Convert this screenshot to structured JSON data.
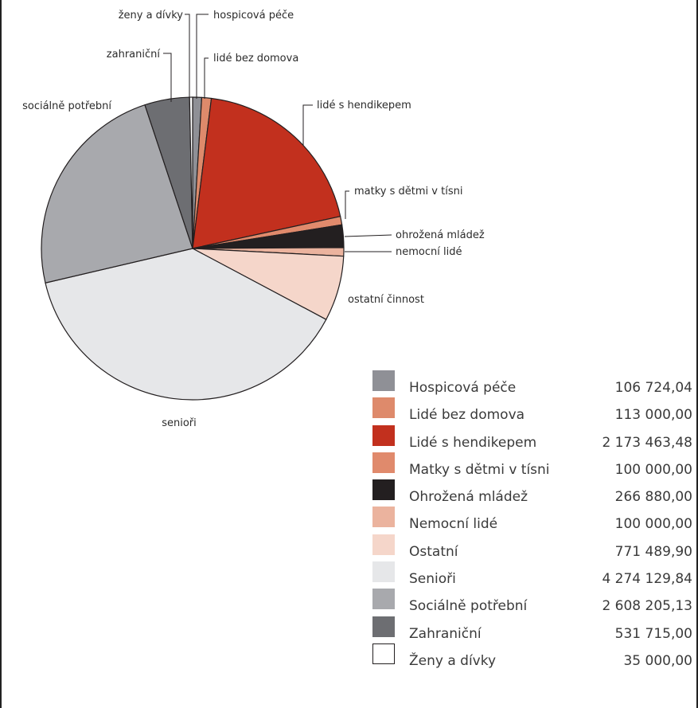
{
  "chart_data": {
    "type": "pie",
    "slices": [
      {
        "key": "hospic",
        "label": "hospicová péče",
        "legend": "Hospicová péče",
        "value": 106724.04,
        "value_text": "106 724,04",
        "color": "#8f9096"
      },
      {
        "key": "bezdomova",
        "label": "lidé bez domova",
        "legend": "Lidé bez domova",
        "value": 113000.0,
        "value_text": "113 000,00",
        "color": "#de8a6b"
      },
      {
        "key": "hendikep",
        "label": "lidé s hendikepem",
        "legend": "Lidé s hendikepem",
        "value": 2173463.48,
        "value_text": "2 173 463,48",
        "color": "#c2301e"
      },
      {
        "key": "matky",
        "label": "matky s dětmi v tísni",
        "legend": "Matky s dětmi v tísni",
        "value": 100000.0,
        "value_text": "100 000,00",
        "color": "#e08a6c"
      },
      {
        "key": "mladez",
        "label": "ohrožená mládež",
        "legend": "Ohrožená mládež",
        "value": 266880.0,
        "value_text": "266 880,00",
        "color": "#231f20"
      },
      {
        "key": "nemocni",
        "label": "nemocní lidé",
        "legend": "Nemocní lidé",
        "value": 100000.0,
        "value_text": "100 000,00",
        "color": "#ebb39e"
      },
      {
        "key": "ostatni",
        "label": "ostatní činnost",
        "legend": "Ostatní",
        "value": 771489.9,
        "value_text": "771 489,90",
        "color": "#f5d6ca"
      },
      {
        "key": "seniori",
        "label": "senioři",
        "legend": "Senioři",
        "value": 4274129.84,
        "value_text": "4 274 129,84",
        "color": "#e6e7e9"
      },
      {
        "key": "socialne",
        "label": "sociálně potřební",
        "legend": "Sociálně potřební",
        "value": 2608205.13,
        "value_text": "2 608 205,13",
        "color": "#a8a9ad"
      },
      {
        "key": "zahranicni",
        "label": "zahraniční",
        "legend": "Zahraniční",
        "value": 531715.0,
        "value_text": "531 715,00",
        "color": "#6d6e72"
      },
      {
        "key": "zeny",
        "label": "ženy a dívky",
        "legend": "Ženy a dívky",
        "value": 35000.0,
        "value_text": "35 000,00",
        "color": "#ffffff"
      }
    ]
  }
}
